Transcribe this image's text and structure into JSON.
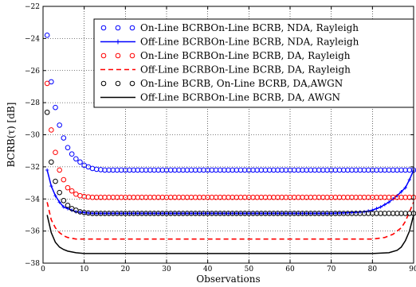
{
  "chart_data": {
    "type": "line",
    "xlabel": "Observations",
    "ylabel": "BCRB(τ) [dB]",
    "xlim": [
      0,
      90
    ],
    "ylim": [
      -38,
      -22
    ],
    "xticks": [
      0,
      10,
      20,
      30,
      40,
      50,
      60,
      70,
      80,
      90
    ],
    "yticks": [
      -38,
      -36,
      -34,
      -32,
      -30,
      -28,
      -26,
      -24,
      -22
    ],
    "grid": true,
    "legend_position": "top-right",
    "series": [
      {
        "name": "On-Line BCRBOn-Line BCRB, NDA, Rayleigh",
        "color": "#0000ff",
        "style": "circles",
        "x": [
          1,
          2,
          3,
          4,
          5,
          6,
          7,
          8,
          9,
          10,
          11,
          12,
          13,
          15,
          20,
          30,
          40,
          50,
          60,
          70,
          80,
          85,
          88,
          90
        ],
        "y": [
          -23.8,
          -26.7,
          -28.3,
          -29.4,
          -30.2,
          -30.8,
          -31.2,
          -31.5,
          -31.7,
          -31.9,
          -32.0,
          -32.1,
          -32.15,
          -32.2,
          -32.2,
          -32.2,
          -32.2,
          -32.2,
          -32.2,
          -32.2,
          -32.2,
          -32.2,
          -32.2,
          -32.2
        ]
      },
      {
        "name": "Off-Line BCRBOn-Line BCRB, NDA, Rayleigh",
        "color": "#0000ff",
        "style": "solid-marker",
        "x": [
          1,
          2,
          3,
          4,
          5,
          6,
          7,
          8,
          10,
          12,
          15,
          20,
          30,
          40,
          50,
          60,
          70,
          75,
          78,
          80,
          82,
          84,
          86,
          88,
          89,
          90
        ],
        "y": [
          -32.2,
          -33.2,
          -33.8,
          -34.2,
          -34.5,
          -34.6,
          -34.7,
          -34.8,
          -34.85,
          -34.9,
          -34.9,
          -34.9,
          -34.9,
          -34.9,
          -34.9,
          -34.9,
          -34.9,
          -34.85,
          -34.8,
          -34.7,
          -34.5,
          -34.2,
          -33.8,
          -33.3,
          -32.8,
          -32.2
        ]
      },
      {
        "name": "On-Line BCRBOn-Line BCRB, DA, Rayleigh",
        "color": "#ff0000",
        "style": "circles",
        "x": [
          1,
          2,
          3,
          4,
          5,
          6,
          7,
          8,
          9,
          10,
          12,
          15,
          20,
          30,
          40,
          50,
          60,
          70,
          80,
          85,
          90
        ],
        "y": [
          -26.8,
          -29.7,
          -31.1,
          -32.2,
          -32.8,
          -33.3,
          -33.5,
          -33.7,
          -33.8,
          -33.85,
          -33.9,
          -33.9,
          -33.9,
          -33.9,
          -33.9,
          -33.9,
          -33.9,
          -33.9,
          -33.9,
          -33.9,
          -33.9
        ]
      },
      {
        "name": "Off-Line BCRBOn-Line BCRB, DA, Rayleigh",
        "color": "#ff0000",
        "style": "dashed",
        "x": [
          1,
          2,
          3,
          4,
          5,
          6,
          7,
          8,
          10,
          12,
          15,
          20,
          30,
          40,
          50,
          60,
          70,
          80,
          83,
          85,
          87,
          88,
          89,
          90
        ],
        "y": [
          -34.2,
          -35.3,
          -35.8,
          -36.1,
          -36.3,
          -36.4,
          -36.45,
          -36.5,
          -36.5,
          -36.5,
          -36.5,
          -36.5,
          -36.5,
          -36.5,
          -36.5,
          -36.5,
          -36.5,
          -36.5,
          -36.4,
          -36.2,
          -35.8,
          -35.4,
          -34.8,
          -34.2
        ]
      },
      {
        "name": "On-Line BCRB, On-Line BCRB, DA,AWGN",
        "color": "#000000",
        "style": "circles",
        "x": [
          1,
          2,
          3,
          4,
          5,
          6,
          7,
          8,
          9,
          10,
          12,
          15,
          20,
          30,
          40,
          50,
          60,
          70,
          80,
          85,
          90
        ],
        "y": [
          -28.6,
          -31.7,
          -32.9,
          -33.6,
          -34.1,
          -34.4,
          -34.6,
          -34.7,
          -34.8,
          -34.85,
          -34.9,
          -34.9,
          -34.9,
          -34.9,
          -34.9,
          -34.9,
          -34.9,
          -34.9,
          -34.9,
          -34.9,
          -34.9
        ]
      },
      {
        "name": "Off-Line BCRBOn-Line BCRB, DA, AWGN",
        "color": "#000000",
        "style": "solid",
        "x": [
          1,
          2,
          3,
          4,
          5,
          6,
          7,
          8,
          10,
          12,
          15,
          20,
          30,
          40,
          50,
          60,
          70,
          80,
          84,
          86,
          87,
          88,
          89,
          90
        ],
        "y": [
          -35.0,
          -36.1,
          -36.7,
          -37.0,
          -37.15,
          -37.25,
          -37.3,
          -37.35,
          -37.4,
          -37.4,
          -37.4,
          -37.4,
          -37.4,
          -37.4,
          -37.4,
          -37.4,
          -37.4,
          -37.4,
          -37.35,
          -37.2,
          -37.0,
          -36.6,
          -36.0,
          -35.0
        ]
      }
    ]
  }
}
